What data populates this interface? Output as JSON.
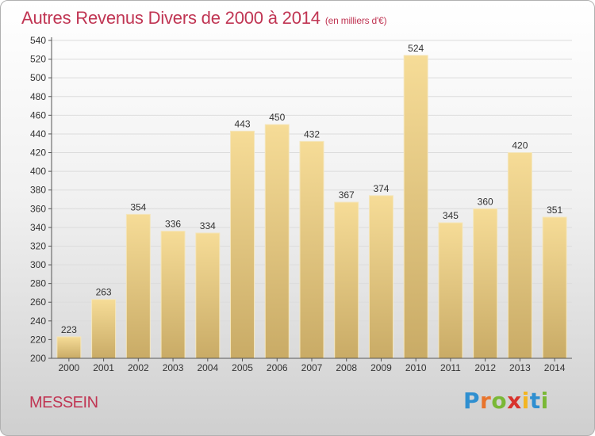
{
  "page": {
    "title": "Autres Revenus Divers de 2000 à 2014",
    "unit": "(en milliers d'€)",
    "place": "MESSEIN",
    "logo": {
      "letters": [
        "P",
        "r",
        "o",
        "x",
        "i",
        "t",
        "i"
      ],
      "colors": [
        "#2f8fd0",
        "#e8742c",
        "#7ab836",
        "#d8322c",
        "#f3b521",
        "#2f8fd0",
        "#7ab836"
      ]
    }
  },
  "colors": {
    "accent": "#c03553",
    "bar_top": "#f6dc97",
    "bar_bottom": "#c9ab66"
  },
  "chart_data": {
    "type": "bar",
    "title": "Autres Revenus Divers de 2000 à 2014",
    "subtitle": "(en milliers d'€)",
    "xlabel": "",
    "ylabel": "",
    "categories": [
      "2000",
      "2001",
      "2002",
      "2003",
      "2004",
      "2005",
      "2006",
      "2007",
      "2008",
      "2009",
      "2010",
      "2011",
      "2012",
      "2013",
      "2014"
    ],
    "values": [
      223,
      263,
      354,
      336,
      334,
      443,
      450,
      432,
      367,
      374,
      524,
      345,
      360,
      420,
      351
    ],
    "ylim": [
      200,
      540
    ],
    "yticks": [
      200,
      220,
      240,
      260,
      280,
      300,
      320,
      340,
      360,
      380,
      400,
      420,
      440,
      460,
      480,
      500,
      520,
      540
    ],
    "grid": true,
    "legend": "none"
  }
}
